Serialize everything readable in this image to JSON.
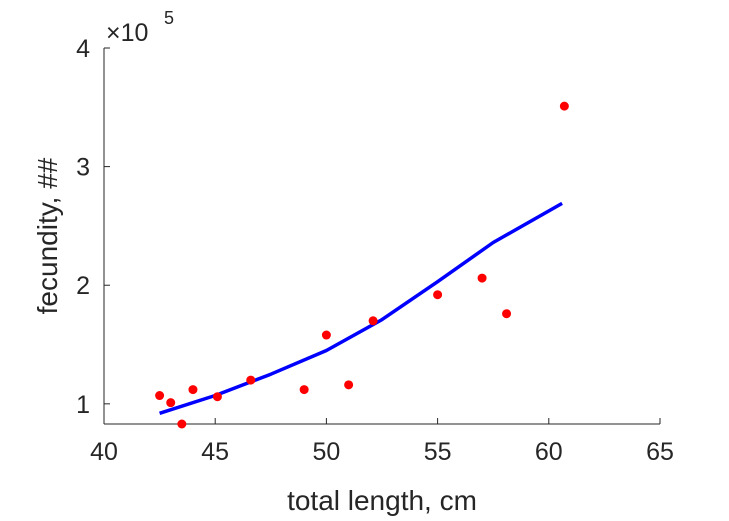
{
  "chart_data": {
    "type": "scatter",
    "xlabel": "total length, cm",
    "ylabel": "fecundity, ##",
    "y_multiplier": {
      "base": "×10",
      "exponent": "5"
    },
    "xlim": [
      40,
      65
    ],
    "ylim": [
      0.83,
      4
    ],
    "x_ticks": [
      "40",
      "45",
      "50",
      "55",
      "60",
      "65"
    ],
    "x_tick_values": [
      40,
      45,
      50,
      55,
      60,
      65
    ],
    "y_ticks": [
      "1",
      "2",
      "3",
      "4"
    ],
    "y_tick_values": [
      1,
      2,
      3,
      4
    ],
    "grid": false,
    "series": [
      {
        "kind": "points",
        "color": "#ff0000",
        "x": [
          42.5,
          43.0,
          43.5,
          44.0,
          45.1,
          46.6,
          49.0,
          50.0,
          51.0,
          52.1,
          55.0,
          57.0,
          58.1,
          60.7
        ],
        "y": [
          1.07,
          1.01,
          0.83,
          1.12,
          1.06,
          1.2,
          1.12,
          1.58,
          1.16,
          1.7,
          1.92,
          2.06,
          1.76,
          3.51
        ]
      },
      {
        "kind": "line",
        "color": "#0000ff",
        "x": [
          42.5,
          45.0,
          47.5,
          50.0,
          52.5,
          55.0,
          57.5,
          60.6
        ],
        "y": [
          0.92,
          1.07,
          1.25,
          1.45,
          1.71,
          2.03,
          2.36,
          2.69
        ]
      }
    ]
  }
}
